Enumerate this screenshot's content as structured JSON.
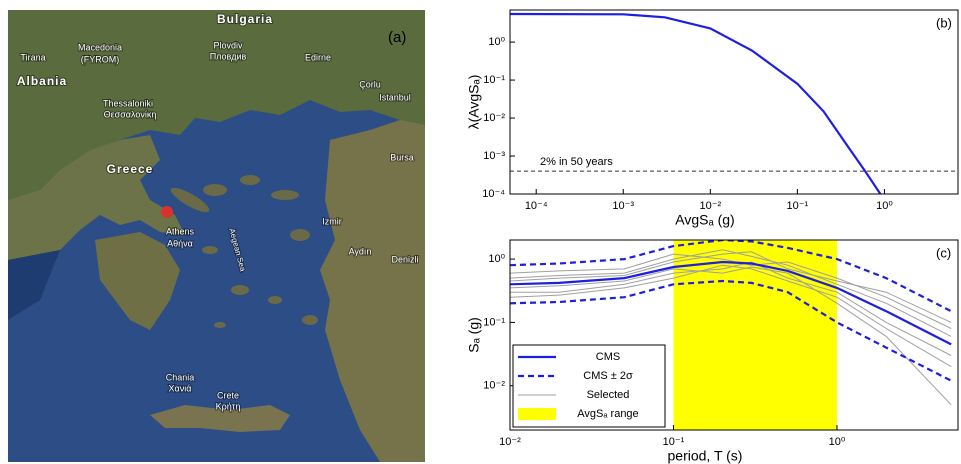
{
  "map": {
    "panel": "(a)",
    "labels": [
      "Bulgaria",
      "Tirana",
      "Macedonia",
      "(FYROM)",
      "Plovdiv",
      "Пловдив",
      "Edirne",
      "Albania",
      "Thessaloniki",
      "Θεσσαλονίκη",
      "Çorlu",
      "Istanbul",
      "Bursa",
      "Greece",
      "Izmir",
      "Athens",
      "Αθήνα",
      "Aegean Sea",
      "Aydın",
      "Denizli",
      "Chania",
      "Χανιά",
      "Crete",
      "Κρήτη"
    ]
  },
  "chart_data": [
    {
      "type": "line",
      "title": "(b)",
      "x_label": "AvgSₐ (g)",
      "y_label": "λ(AvgSₐ)",
      "xscale": "log",
      "yscale": "log",
      "xlim": [
        5e-05,
        7
      ],
      "ylim": [
        0.0001,
        7
      ],
      "xticks": [
        {
          "value": 0.0001,
          "label": "10⁻⁴"
        },
        {
          "value": 0.001,
          "label": "10⁻³"
        },
        {
          "value": 0.01,
          "label": "10⁻²"
        },
        {
          "value": 0.1,
          "label": "10⁻¹"
        },
        {
          "value": 1,
          "label": "10⁰"
        }
      ],
      "yticks": [
        {
          "value": 0.0001,
          "label": "10⁻⁴"
        },
        {
          "value": 0.001,
          "label": "10⁻³"
        },
        {
          "value": 0.01,
          "label": "10⁻²"
        },
        {
          "value": 0.1,
          "label": "10⁻¹"
        },
        {
          "value": 1,
          "label": "10⁰"
        }
      ],
      "x": [
        5e-05,
        0.001,
        0.003,
        0.01,
        0.03,
        0.1,
        0.2,
        0.4,
        0.6,
        0.9
      ],
      "series": [
        {
          "color": "#1f1fe0",
          "style": "solid",
          "values": [
            5.5,
            5.4,
            4.5,
            2.3,
            0.6,
            0.08,
            0.015,
            0.0015,
            0.0004,
            0.0001
          ]
        }
      ],
      "annotations": [
        {
          "text": "2% in 50 years",
          "y": 0.0004
        }
      ]
    },
    {
      "type": "line",
      "title": "(c)",
      "x_label": "period, T (s)",
      "y_label": "Sₐ (g)",
      "xscale": "log",
      "yscale": "log",
      "xlim": [
        0.01,
        5.5
      ],
      "ylim": [
        0.002,
        2
      ],
      "xticks": [
        {
          "value": 0.01,
          "label": "10⁻²"
        },
        {
          "value": 0.1,
          "label": "10⁻¹"
        },
        {
          "value": 1,
          "label": "10⁰"
        }
      ],
      "yticks": [
        {
          "value": 0.01,
          "label": "10⁻²"
        },
        {
          "value": 0.1,
          "label": "10⁻¹"
        },
        {
          "value": 1,
          "label": "10⁰"
        }
      ],
      "legend": "lower left",
      "range": {
        "name": "AvgSₐ range",
        "color": "#ffff00",
        "x": [
          0.1,
          1
        ]
      },
      "x": [
        0.01,
        0.02,
        0.05,
        0.1,
        0.2,
        0.3,
        0.5,
        1,
        2,
        5
      ],
      "series": [
        {
          "name": "CMS",
          "color": "#1f1fe0",
          "style": "solid",
          "values": [
            0.4,
            0.42,
            0.5,
            0.75,
            0.9,
            0.85,
            0.65,
            0.35,
            0.15,
            0.045
          ]
        },
        {
          "name": "CMS ± 2σ",
          "color": "#1f1fe0",
          "style": "dashed",
          "values": [
            0.8,
            0.85,
            1.0,
            1.6,
            2.0,
            1.9,
            1.5,
            1.0,
            0.5,
            0.15
          ]
        },
        {
          "color": "#1f1fe0",
          "style": "dashed",
          "values": [
            0.2,
            0.21,
            0.25,
            0.4,
            0.45,
            0.42,
            0.3,
            0.1,
            0.04,
            0.012
          ]
        },
        {
          "name": "Selected",
          "color": "#a0a0a0",
          "style": "thin",
          "values": [
            0.5,
            0.55,
            0.6,
            1.0,
            1.4,
            1.1,
            0.8,
            0.4,
            0.2,
            0.06
          ]
        },
        {
          "color": "#a0a0a0",
          "style": "thin",
          "values": [
            0.3,
            0.3,
            0.4,
            0.6,
            0.7,
            0.9,
            0.5,
            0.3,
            0.1,
            0.03
          ]
        },
        {
          "color": "#a0a0a0",
          "style": "thin",
          "values": [
            0.6,
            0.65,
            0.7,
            1.2,
            1.0,
            0.8,
            0.9,
            0.5,
            0.25,
            0.08
          ]
        },
        {
          "color": "#a0a0a0",
          "style": "thin",
          "values": [
            0.25,
            0.27,
            0.35,
            0.5,
            0.8,
            0.7,
            0.45,
            0.25,
            0.08,
            0.02
          ]
        },
        {
          "color": "#a0a0a0",
          "style": "thin",
          "values": [
            0.45,
            0.5,
            0.55,
            0.9,
            1.2,
            1.3,
            0.7,
            0.45,
            0.3,
            0.1
          ]
        },
        {
          "color": "#a0a0a0",
          "style": "thin",
          "values": [
            0.35,
            0.38,
            0.45,
            0.7,
            0.6,
            0.75,
            0.6,
            0.2,
            0.06,
            0.005
          ]
        }
      ]
    }
  ]
}
